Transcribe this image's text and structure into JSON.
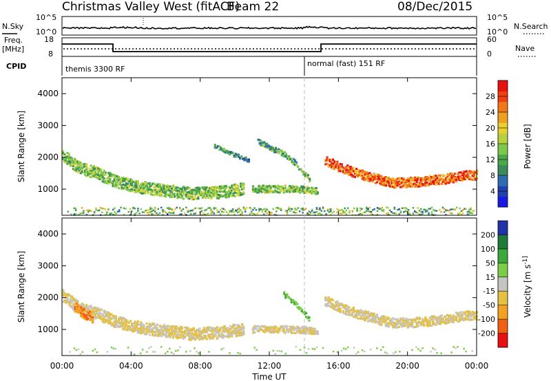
{
  "header": {
    "title": "Christmas Valley West (fitACF)",
    "beam": "Beam 22",
    "date": "08/Dec/2015"
  },
  "panels": {
    "nsky": {
      "label": "N.Sky",
      "left_ticks": [
        "10^5",
        "10^0"
      ],
      "right_label": "N.Search",
      "right_ticks": [
        "10^5",
        "10^0"
      ]
    },
    "freq": {
      "label_line1": "Freq.",
      "label_line2": "[MHz]",
      "left_ticks": [
        "18",
        "8"
      ],
      "right_label": "Nave",
      "right_ticks": [
        "60",
        "0"
      ]
    },
    "cpid": {
      "label": "CPID",
      "segments": [
        "themis 3300 RF",
        "normal (fast) 151 RF"
      ]
    }
  },
  "chart_data": [
    {
      "type": "heatmap",
      "title": "",
      "xlabel": "Time UT",
      "ylabel": "Slant Range [km]",
      "x_ticks": [
        "00:00",
        "04:00",
        "08:00",
        "12:00",
        "16:00",
        "20:00",
        "00:00"
      ],
      "x_range_hours": [
        0,
        24
      ],
      "y_ticks": [
        1000,
        2000,
        3000,
        4000
      ],
      "ylim": [
        180,
        4500
      ],
      "colorbar": {
        "label": "Power [dB]",
        "ticks": [
          4,
          8,
          12,
          16,
          20,
          24,
          28
        ],
        "range": [
          0,
          32
        ],
        "colors": [
          "#1a1ae6",
          "#2040b0",
          "#2e6cb0",
          "#3a8a5a",
          "#4aa84a",
          "#7cc84a",
          "#b8d040",
          "#e8d030",
          "#f0a020",
          "#f07818",
          "#f04010",
          "#e81010"
        ]
      },
      "bands": [
        {
          "t": [
            0,
            1,
            2,
            3,
            4.5,
            6,
            7.5,
            9,
            10.5
          ],
          "range": [
            2050,
            1650,
            1500,
            1250,
            1050,
            950,
            850,
            900,
            1000
          ],
          "thickness": 380,
          "power": 14
        },
        {
          "t": [
            11,
            12,
            13,
            14,
            14.8
          ],
          "range": [
            1000,
            1000,
            1000,
            980,
            950
          ],
          "thickness": 220,
          "power": 14
        },
        {
          "t": [
            15.2,
            16,
            17,
            18,
            19,
            20,
            21,
            22,
            23,
            24
          ],
          "range": [
            1900,
            1700,
            1500,
            1350,
            1200,
            1200,
            1250,
            1300,
            1400,
            1450
          ],
          "thickness": 300,
          "power": 26
        },
        {
          "t": [
            11.3,
            12,
            12.8,
            13.5,
            14.3
          ],
          "range": [
            2500,
            2300,
            2100,
            1800,
            1300
          ],
          "thickness": 160,
          "power": 12
        },
        {
          "t": [
            8.8,
            9.8,
            10.8
          ],
          "range": [
            2350,
            2100,
            1900
          ],
          "thickness": 120,
          "power": 9
        }
      ],
      "ground_scatter_km": [
        180,
        420
      ]
    },
    {
      "type": "heatmap",
      "title": "",
      "xlabel": "Time UT",
      "ylabel": "Slant Range [km]",
      "x_ticks": [
        "00:00",
        "04:00",
        "08:00",
        "12:00",
        "16:00",
        "20:00",
        "00:00"
      ],
      "x_range_hours": [
        0,
        24
      ],
      "y_ticks": [
        1000,
        2000,
        3000,
        4000
      ],
      "ylim": [
        180,
        4500
      ],
      "colorbar": {
        "label": "Velocity [m s^-1]",
        "ticks": [
          200,
          100,
          50,
          15,
          -15,
          -50,
          -100,
          -200
        ],
        "colors": [
          "#2233aa",
          "#1f7a3a",
          "#3aa83a",
          "#7ccd44",
          "#c4c4c0",
          "#e6c040",
          "#f4a020",
          "#f06010",
          "#e81010"
        ]
      },
      "bands": [
        {
          "t": [
            0,
            1,
            2,
            3,
            4.5,
            6,
            7.5,
            9,
            10.5
          ],
          "range": [
            2050,
            1650,
            1500,
            1250,
            1050,
            950,
            850,
            900,
            1000
          ],
          "thickness": 380,
          "velocity": -15
        },
        {
          "t": [
            0.7,
            1.2,
            1.8
          ],
          "range": [
            1700,
            1500,
            1350
          ],
          "thickness": 300,
          "velocity": -100
        },
        {
          "t": [
            11,
            12,
            13,
            14,
            14.8
          ],
          "range": [
            1000,
            1000,
            1000,
            980,
            950
          ],
          "thickness": 220,
          "velocity": -15
        },
        {
          "t": [
            15.2,
            16,
            17,
            18,
            19,
            20,
            21,
            22,
            23,
            24
          ],
          "range": [
            1900,
            1700,
            1500,
            1350,
            1200,
            1200,
            1250,
            1300,
            1400,
            1450
          ],
          "thickness": 300,
          "velocity": -15
        },
        {
          "t": [
            12.8,
            13.5,
            14.3
          ],
          "range": [
            2100,
            1800,
            1300
          ],
          "thickness": 140,
          "velocity": 50
        }
      ]
    }
  ]
}
